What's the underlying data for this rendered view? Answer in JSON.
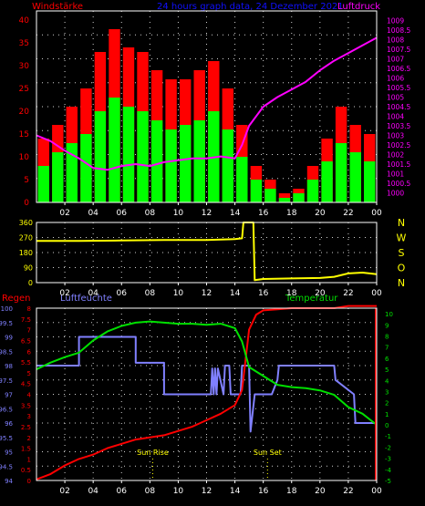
{
  "header": {
    "title": "24 hours graph data, 24 Dezember 2021",
    "left_label": "Windstärke",
    "right_label": "Luftdruck"
  },
  "colors": {
    "background": "#000000",
    "frame": "#ffffff",
    "grid": "#d0d0d0",
    "wind_gust": "#ff0000",
    "wind_avg": "#00ff00",
    "pressure": "#ff00ff",
    "direction": "#ffff00",
    "humidity": "#8080ff",
    "temperature": "#00e000",
    "rain": "#ff0000",
    "title": "#1010ff",
    "axis_left_top": "#ff0000",
    "axis_right_top": "#ff00ff",
    "axis_yellow": "#ffff00",
    "sun_marker": "#ffff00"
  },
  "x_tick_labels": [
    "02",
    "04",
    "06",
    "08",
    "10",
    "12",
    "14",
    "16",
    "18",
    "20",
    "22",
    "00"
  ],
  "chart_data": [
    {
      "type": "line",
      "name": "wind-pressure",
      "title": "24 hours graph data, 24 Dezember 2021",
      "ylabel": "Windstärke",
      "ylabel_right": "Luftdruck",
      "x_unit": "hours since 00:00",
      "xlim": [
        0,
        24
      ],
      "ylim": [
        0,
        42
      ],
      "y_ticks": [
        "0",
        "5",
        "10",
        "15",
        "20",
        "25",
        "30",
        "35",
        "40"
      ],
      "ylim_right": [
        999.5,
        1009.5
      ],
      "y_ticks_right": [
        "1000",
        "1000.5",
        "1001",
        "1001.5",
        "1002",
        "1002.5",
        "1003",
        "1003.5",
        "1004",
        "1004.5",
        "1005",
        "1005.5",
        "1006",
        "1006.5",
        "1007",
        "1007.5",
        "1008",
        "1008.5",
        "1009"
      ],
      "series": [
        {
          "name": "Windstärke",
          "axis": "left",
          "kind": "gust-bars",
          "x": [
            0.5,
            1.5,
            2.5,
            3.5,
            4.5,
            5.5,
            6.5,
            7.5,
            8.5,
            9.5,
            10.5,
            11.5,
            12.5,
            13.5,
            14.5,
            15.5,
            16.5,
            17.5,
            18.5,
            19.5,
            20.5,
            21.5,
            22.5,
            23.5
          ],
          "values": [
            14,
            17,
            21,
            25,
            33,
            38,
            34,
            33,
            29,
            27,
            27,
            29,
            31,
            25,
            17,
            8,
            5,
            2,
            3,
            8,
            14,
            21,
            17,
            15
          ]
        },
        {
          "axis": "left",
          "kind": "avg-bars",
          "x": [
            0.5,
            1.5,
            2.5,
            3.5,
            4.5,
            5.5,
            6.5,
            7.5,
            8.5,
            9.5,
            10.5,
            11.5,
            12.5,
            13.5,
            14.5,
            15.5,
            16.5,
            17.5,
            18.5,
            19.5,
            20.5,
            21.5,
            22.5,
            23.5
          ],
          "values": [
            8,
            11,
            13,
            15,
            20,
            23,
            21,
            20,
            18,
            16,
            17,
            18,
            20,
            16,
            10,
            5,
            3,
            1,
            2,
            5,
            9,
            13,
            11,
            9
          ]
        },
        {
          "name": "Luftdruck",
          "axis": "right",
          "x": [
            0,
            1,
            2,
            3,
            4,
            5,
            6,
            7,
            8,
            9,
            10,
            11,
            12,
            13,
            14,
            14.5,
            15,
            16,
            17,
            18,
            19,
            20,
            21,
            22,
            23,
            24
          ],
          "values": [
            1003.0,
            1002.7,
            1002.2,
            1001.8,
            1001.3,
            1001.2,
            1001.4,
            1001.5,
            1001.4,
            1001.6,
            1001.7,
            1001.8,
            1001.8,
            1001.9,
            1001.8,
            1002.5,
            1003.5,
            1004.5,
            1005.0,
            1005.4,
            1005.8,
            1006.4,
            1006.9,
            1007.3,
            1007.7,
            1008.1
          ]
        }
      ]
    },
    {
      "type": "line",
      "name": "wind-direction",
      "x_unit": "hours since 00:00",
      "xlim": [
        0,
        24
      ],
      "ylim": [
        0,
        360
      ],
      "y_ticks": [
        "0",
        "90",
        "180",
        "270",
        "360"
      ],
      "right_labels": [
        "N",
        "W",
        "S",
        "O",
        "N"
      ],
      "series": [
        {
          "x": [
            0,
            3,
            6,
            9,
            12,
            13,
            14,
            14.5,
            14.6,
            15.3,
            15.4,
            16,
            18,
            20,
            21,
            22,
            23,
            24
          ],
          "values": [
            250,
            250,
            252,
            255,
            255,
            258,
            260,
            265,
            360,
            360,
            15,
            22,
            25,
            28,
            35,
            55,
            60,
            50
          ]
        }
      ]
    },
    {
      "type": "line",
      "name": "humidity-temperature-rain",
      "x_unit": "hours since 00:00",
      "xlim": [
        0,
        24
      ],
      "legend": [
        "Regen",
        "Luftfeuchte",
        "Temperatur"
      ],
      "y_ticks_humidity": [
        "94",
        "94.5",
        "95",
        "95.5",
        "96",
        "96.5",
        "97",
        "97.5",
        "98",
        "98.5",
        "99",
        "99.5",
        "100"
      ],
      "ylim_humidity": [
        94,
        100
      ],
      "y_ticks_rain": [
        "0",
        "0.5",
        "1",
        "1.5",
        "2",
        "2.5",
        "3",
        "3.5",
        "4",
        "4.5",
        "5",
        "5.5",
        "6",
        "6.5",
        "7",
        "7.5",
        "8"
      ],
      "ylim_rain": [
        0,
        8
      ],
      "y_ticks_temperature": [
        "-5",
        "-4",
        "-3",
        "-2",
        "-1",
        "0",
        "1",
        "2",
        "3",
        "4",
        "5",
        "6",
        "7",
        "8",
        "9",
        "10"
      ],
      "ylim_temperature": [
        -5,
        10.5
      ],
      "annotations": [
        {
          "text": "Sun Rise",
          "x": 8.2
        },
        {
          "text": "Sun Set",
          "x": 16.3
        }
      ],
      "series": [
        {
          "name": "Luftfeuchte",
          "axis": "humidity",
          "x": [
            0,
            3,
            3,
            7,
            7,
            9,
            9,
            11.5,
            11.5,
            12.3,
            12.4,
            12.5,
            12.6,
            12.7,
            12.8,
            13.2,
            13.3,
            13.6,
            13.7,
            14.4,
            14.5,
            15.0,
            15.1,
            15.4,
            15.5,
            16.5,
            16.6,
            17.0,
            17.1,
            19.5,
            19.6,
            21.0,
            21.1,
            22.4,
            22.5,
            24
          ],
          "values": [
            98,
            98,
            99,
            99,
            98.1,
            98.1,
            97,
            97,
            97,
            97,
            97.9,
            97,
            97.9,
            97,
            97.9,
            97,
            98,
            98,
            97,
            97,
            98,
            98,
            95.7,
            97,
            97,
            97,
            97,
            97.5,
            98,
            98,
            98,
            98,
            97.5,
            97,
            96,
            96
          ]
        },
        {
          "name": "Temperatur",
          "axis": "temperature",
          "x": [
            0,
            1,
            2,
            3,
            4,
            5,
            6,
            7,
            8,
            9,
            10,
            11,
            12,
            13,
            14,
            14.5,
            15,
            16,
            17,
            18,
            19,
            20,
            21,
            22,
            23,
            24
          ],
          "values": [
            5.0,
            5.6,
            6.1,
            6.5,
            7.6,
            8.4,
            8.9,
            9.2,
            9.3,
            9.2,
            9.1,
            9.1,
            9.0,
            9.1,
            8.7,
            7.5,
            5.2,
            4.4,
            3.6,
            3.4,
            3.3,
            3.1,
            2.7,
            1.6,
            1.0,
            0.0
          ]
        },
        {
          "name": "Regen",
          "axis": "rain",
          "x": [
            0,
            1,
            2,
            3,
            4,
            5,
            6,
            7,
            8,
            9,
            10,
            11,
            12,
            13,
            14,
            14.5,
            15,
            15.5,
            16,
            17,
            18,
            19,
            20,
            21,
            22,
            23,
            24
          ],
          "values": [
            0.05,
            0.3,
            0.7,
            1.0,
            1.2,
            1.5,
            1.7,
            1.9,
            2.0,
            2.1,
            2.3,
            2.5,
            2.8,
            3.1,
            3.5,
            4.2,
            7.0,
            7.7,
            7.9,
            7.95,
            8.0,
            8.0,
            8.0,
            8.0,
            8.1,
            8.1,
            8.1
          ]
        }
      ]
    }
  ]
}
